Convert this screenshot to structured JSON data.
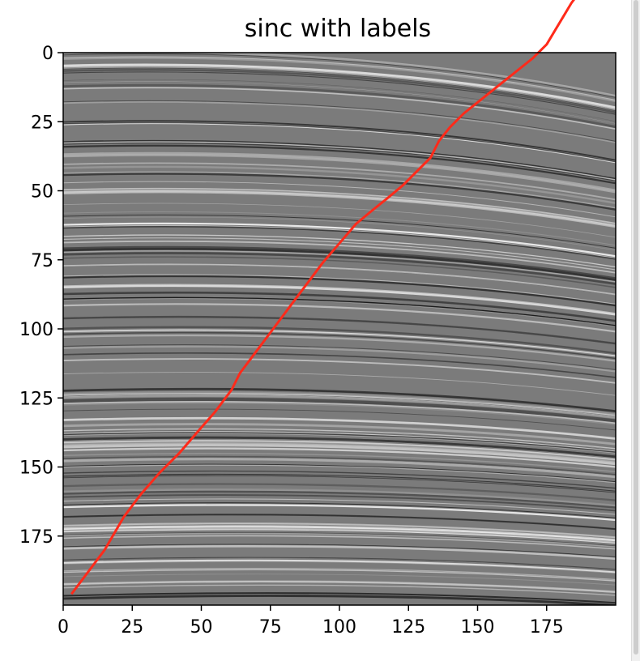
{
  "chart_data": {
    "type": "heatmap",
    "title": "sinc with labels",
    "xlabel": "",
    "ylabel": "",
    "colormap": "gray",
    "xlim": [
      0,
      200
    ],
    "ylim": [
      200,
      0
    ],
    "x_ticks": [
      "0",
      "25",
      "50",
      "75",
      "100",
      "125",
      "150",
      "175"
    ],
    "y_ticks": [
      "0",
      "25",
      "50",
      "75",
      "100",
      "125",
      "150",
      "175"
    ],
    "grid": false,
    "overlay_line": {
      "color": "#ff2a1a",
      "x": [
        3,
        9,
        15,
        22,
        28,
        35,
        42,
        48,
        55,
        61,
        64,
        70,
        76,
        82,
        88,
        94,
        100,
        106,
        112,
        117,
        123,
        128,
        133,
        136,
        140,
        145,
        150,
        155,
        160,
        165,
        170,
        175,
        178,
        181,
        184,
        187,
        190
      ],
      "y": [
        196,
        188,
        180,
        168,
        160,
        152,
        145,
        138,
        130,
        122,
        116,
        108,
        100,
        92,
        84,
        76,
        69,
        62,
        57,
        53,
        48,
        43,
        38,
        32,
        27,
        22,
        18,
        14,
        10,
        6,
        2,
        -3,
        -8,
        -13,
        -18,
        -22,
        -26
      ]
    }
  }
}
